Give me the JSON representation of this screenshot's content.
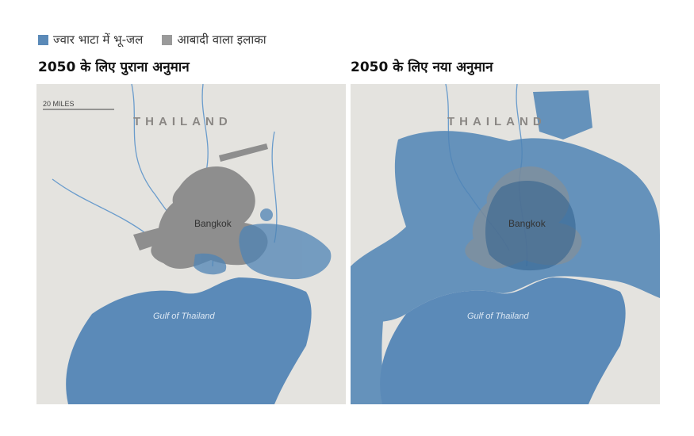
{
  "legend": [
    {
      "label": "ज्वार भाटा में भू-जल",
      "color": "#5b8ab8"
    },
    {
      "label": "आबादी वाला इलाका",
      "color": "#9a9a9a"
    }
  ],
  "panels": [
    {
      "title": "2050 के लिए पुराना अनुमान",
      "country": "THAILAND",
      "city": "Bangkok",
      "water": "Gulf of Thailand",
      "scale": "20 MILES"
    },
    {
      "title": "2050 के लिए नया अनुमान",
      "country": "THAILAND",
      "city": "Bangkok",
      "water": "Gulf of Thailand",
      "scale": ""
    }
  ],
  "colors": {
    "land": "#e4e3df",
    "sea": "#5b8ab8",
    "urban": "#8e8e8e",
    "flood": "#4f84b5",
    "river": "#6a9ccc"
  }
}
